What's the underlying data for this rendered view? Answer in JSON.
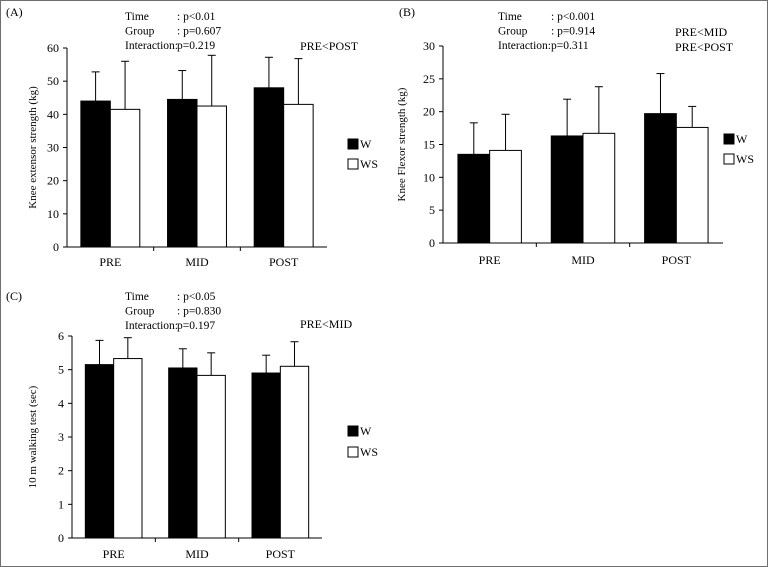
{
  "chart_data": [
    {
      "type": "bar",
      "panel_label": "(A)",
      "ylabel": "Knee extensor strength (kg)",
      "categories": [
        "PRE",
        "MID",
        "POST"
      ],
      "ylim": [
        0,
        60
      ],
      "yticks": [
        0,
        10,
        20,
        30,
        40,
        50,
        60
      ],
      "grid": false,
      "legend_position": "right",
      "series": [
        {
          "name": "W",
          "color": "#000000",
          "values": [
            44.0,
            44.5,
            48.0
          ],
          "sd": [
            8.8,
            8.7,
            9.2
          ]
        },
        {
          "name": "WS",
          "color": "#ffffff",
          "values": [
            41.5,
            42.5,
            43.0
          ],
          "sd": [
            14.5,
            15.3,
            13.8
          ]
        }
      ],
      "stats": [
        {
          "label": "Time",
          "value": ": p<0.01"
        },
        {
          "label": "Group",
          "value": ": p=0.607"
        },
        {
          "label": "Interaction:",
          "value": "p=0.219"
        }
      ],
      "notes": [
        "PRE<POST"
      ]
    },
    {
      "type": "bar",
      "panel_label": "(B)",
      "ylabel": "Knee Flexor strength (kg)",
      "categories": [
        "PRE",
        "MID",
        "POST"
      ],
      "ylim": [
        0,
        30
      ],
      "yticks": [
        0,
        5,
        10,
        15,
        20,
        25,
        30
      ],
      "grid": false,
      "legend_position": "right",
      "series": [
        {
          "name": "W",
          "color": "#000000",
          "values": [
            13.5,
            16.3,
            19.7
          ],
          "sd": [
            4.8,
            5.6,
            6.1
          ]
        },
        {
          "name": "WS",
          "color": "#ffffff",
          "values": [
            14.1,
            16.7,
            17.6
          ],
          "sd": [
            5.5,
            7.1,
            3.2
          ]
        }
      ],
      "stats": [
        {
          "label": "Time",
          "value": ": p<0.001"
        },
        {
          "label": "Group",
          "value": ": p=0.914"
        },
        {
          "label": "Interaction:",
          "value": "p=0.311"
        }
      ],
      "notes": [
        "PRE<MID",
        "PRE<POST"
      ]
    },
    {
      "type": "bar",
      "panel_label": "(C)",
      "ylabel": "10 m walking test (sec)",
      "categories": [
        "PRE",
        "MID",
        "POST"
      ],
      "ylim": [
        0,
        6
      ],
      "yticks": [
        0,
        1,
        2,
        3,
        4,
        5,
        6
      ],
      "grid": false,
      "legend_position": "right",
      "series": [
        {
          "name": "W",
          "color": "#000000",
          "values": [
            5.15,
            5.05,
            4.9
          ],
          "sd": [
            0.72,
            0.57,
            0.53
          ]
        },
        {
          "name": "WS",
          "color": "#ffffff",
          "values": [
            5.33,
            4.83,
            5.1
          ],
          "sd": [
            0.62,
            0.67,
            0.73
          ]
        }
      ],
      "stats": [
        {
          "label": "Time",
          "value": ": p<0.05"
        },
        {
          "label": "Group",
          "value": ": p=0.830"
        },
        {
          "label": "Interaction:",
          "value": "p=0.197"
        }
      ],
      "notes": [
        "PRE<MID"
      ]
    }
  ]
}
